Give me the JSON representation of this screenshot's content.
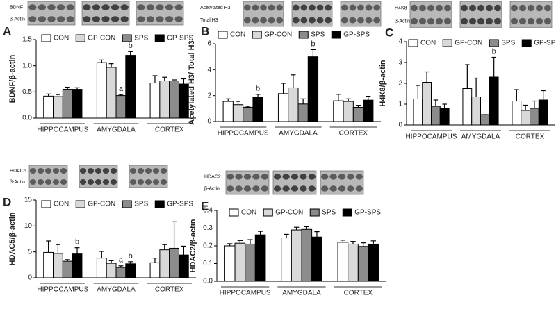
{
  "chart_data": [
    {
      "type": "bar",
      "panel_label": "A",
      "blot_labels": [
        "BDNF",
        "β-Actin"
      ],
      "ylabel": "BDNF/β-actin",
      "categories": [
        "HIPPOCAMPUS",
        "AMYGDALA",
        "CORTEX"
      ],
      "series": [
        {
          "name": "CON",
          "color": "#ffffff",
          "values": [
            0.42,
            1.06,
            0.67
          ],
          "errors": [
            0.04,
            0.05,
            0.14
          ]
        },
        {
          "name": "GP-CON",
          "color": "#d9d9d9",
          "values": [
            0.41,
            0.97,
            0.71
          ],
          "errors": [
            0.04,
            0.07,
            0.07
          ]
        },
        {
          "name": "SPS",
          "color": "#8c8c8c",
          "values": [
            0.55,
            0.43,
            0.71
          ],
          "errors": [
            0.04,
            0.02,
            0.02
          ]
        },
        {
          "name": "GP-SPS",
          "color": "#000000",
          "values": [
            0.55,
            1.2,
            0.65
          ],
          "errors": [
            0.03,
            0.07,
            0.1
          ]
        }
      ],
      "annotations": [
        {
          "text": "a",
          "category": "AMYGDALA",
          "series": "SPS"
        },
        {
          "text": "b",
          "category": "AMYGDALA",
          "series": "GP-SPS"
        }
      ],
      "ylim": [
        0,
        1.5
      ],
      "yticks": [
        {
          "value": 0,
          "label": "0.0"
        },
        0.5,
        {
          "value": 1,
          "label": "1.0"
        },
        1.5
      ]
    },
    {
      "type": "bar",
      "panel_label": "B",
      "blot_labels": [
        "Acetylated H3",
        "Total H3"
      ],
      "ylabel": "Acetylated H3/ Total H3",
      "categories": [
        "HIPPOCAMPUS",
        "AMYGDALA",
        "CORTEX"
      ],
      "series": [
        {
          "name": "CON",
          "color": "#ffffff",
          "values": [
            1.55,
            2.15,
            1.6
          ],
          "errors": [
            0.2,
            0.8,
            0.5
          ]
        },
        {
          "name": "GP-CON",
          "color": "#d9d9d9",
          "values": [
            1.3,
            2.6,
            1.55
          ],
          "errors": [
            0.25,
            1.0,
            0.2
          ]
        },
        {
          "name": "SPS",
          "color": "#8c8c8c",
          "values": [
            1.1,
            1.35,
            1.1
          ],
          "errors": [
            0.08,
            0.4,
            0.15
          ]
        },
        {
          "name": "GP-SPS",
          "color": "#000000",
          "values": [
            1.9,
            5.0,
            1.65
          ],
          "errors": [
            0.2,
            0.55,
            0.3
          ]
        }
      ],
      "annotations": [
        {
          "text": "b",
          "category": "HIPPOCAMPUS",
          "series": "GP-SPS"
        },
        {
          "text": "b",
          "category": "AMYGDALA",
          "series": "GP-SPS"
        }
      ],
      "ylim": [
        0,
        6
      ],
      "yticks": [
        0,
        2,
        4,
        6
      ]
    },
    {
      "type": "bar",
      "panel_label": "C",
      "blot_labels": [
        "H4K8",
        "β-Actin"
      ],
      "ylabel": "H4K8/β-actin",
      "categories": [
        "HIPPOCAMPUS",
        "AMYGDALA",
        "CORTEX"
      ],
      "series": [
        {
          "name": "CON",
          "color": "#ffffff",
          "values": [
            1.25,
            1.75,
            1.15
          ],
          "errors": [
            0.65,
            1.15,
            0.55
          ]
        },
        {
          "name": "GP-CON",
          "color": "#d9d9d9",
          "values": [
            2.05,
            1.35,
            0.7
          ],
          "errors": [
            0.5,
            0.9,
            0.25
          ]
        },
        {
          "name": "SPS",
          "color": "#8c8c8c",
          "values": [
            0.9,
            0.5,
            0.8
          ],
          "errors": [
            0.3,
            0,
            0.35
          ]
        },
        {
          "name": "GP-SPS",
          "color": "#000000",
          "values": [
            0.8,
            2.3,
            1.2
          ],
          "errors": [
            0.2,
            0.95,
            0.45
          ]
        }
      ],
      "annotations": [
        {
          "text": "b",
          "category": "AMYGDALA",
          "series": "GP-SPS"
        }
      ],
      "ylim": [
        0,
        4
      ],
      "yticks": [
        0,
        1,
        2,
        3,
        4
      ]
    },
    {
      "type": "bar",
      "panel_label": "D",
      "blot_labels": [
        "HDAC5",
        "β-Actin"
      ],
      "ylabel": "HDAC5/β-actin",
      "categories": [
        "HIPPOCAMPUS",
        "AMYGDALA",
        "CORTEX"
      ],
      "series": [
        {
          "name": "CON",
          "color": "#ffffff",
          "values": [
            4.9,
            3.8,
            2.9
          ],
          "errors": [
            2.2,
            1.3,
            0.9
          ]
        },
        {
          "name": "GP-CON",
          "color": "#d9d9d9",
          "values": [
            4.7,
            2.8,
            5.4
          ],
          "errors": [
            1.7,
            0.5,
            1.0
          ]
        },
        {
          "name": "SPS",
          "color": "#8c8c8c",
          "values": [
            3.2,
            2.0,
            5.7
          ],
          "errors": [
            0.3,
            0.3,
            5.1
          ]
        },
        {
          "name": "GP-SPS",
          "color": "#000000",
          "values": [
            4.6,
            2.7,
            4.4
          ],
          "errors": [
            1.2,
            0.4,
            1.7
          ]
        }
      ],
      "annotations": [
        {
          "text": "b",
          "category": "HIPPOCAMPUS",
          "series": "GP-SPS"
        },
        {
          "text": "a",
          "category": "AMYGDALA",
          "series": "SPS"
        },
        {
          "text": "b",
          "category": "AMYGDALA",
          "series": "GP-SPS"
        }
      ],
      "ylim": [
        0,
        15
      ],
      "yticks": [
        0,
        5,
        10,
        15
      ]
    },
    {
      "type": "bar",
      "panel_label": "E",
      "blot_labels": [
        "HDAC2",
        "β-Actin"
      ],
      "ylabel": "HDAC2/β-actin",
      "categories": [
        "HIPPOCAMPUS",
        "AMYGDALA",
        "CORTEX"
      ],
      "series": [
        {
          "name": "CON",
          "color": "#ffffff",
          "values": [
            0.2,
            0.245,
            0.22
          ],
          "errors": [
            0.012,
            0.02,
            0.012
          ]
        },
        {
          "name": "GP-CON",
          "color": "#d9d9d9",
          "values": [
            0.215,
            0.29,
            0.21
          ],
          "errors": [
            0.015,
            0.015,
            0.015
          ]
        },
        {
          "name": "SPS",
          "color": "#8c8c8c",
          "values": [
            0.21,
            0.293,
            0.197
          ],
          "errors": [
            0.025,
            0.015,
            0.02
          ]
        },
        {
          "name": "GP-SPS",
          "color": "#000000",
          "values": [
            0.262,
            0.25,
            0.21
          ],
          "errors": [
            0.02,
            0.03,
            0.018
          ]
        }
      ],
      "annotations": [],
      "ylim": [
        0,
        0.4
      ],
      "yticks": [
        {
          "value": 0,
          "label": "0.0"
        },
        0.1,
        0.2,
        0.3,
        0.4
      ]
    }
  ]
}
